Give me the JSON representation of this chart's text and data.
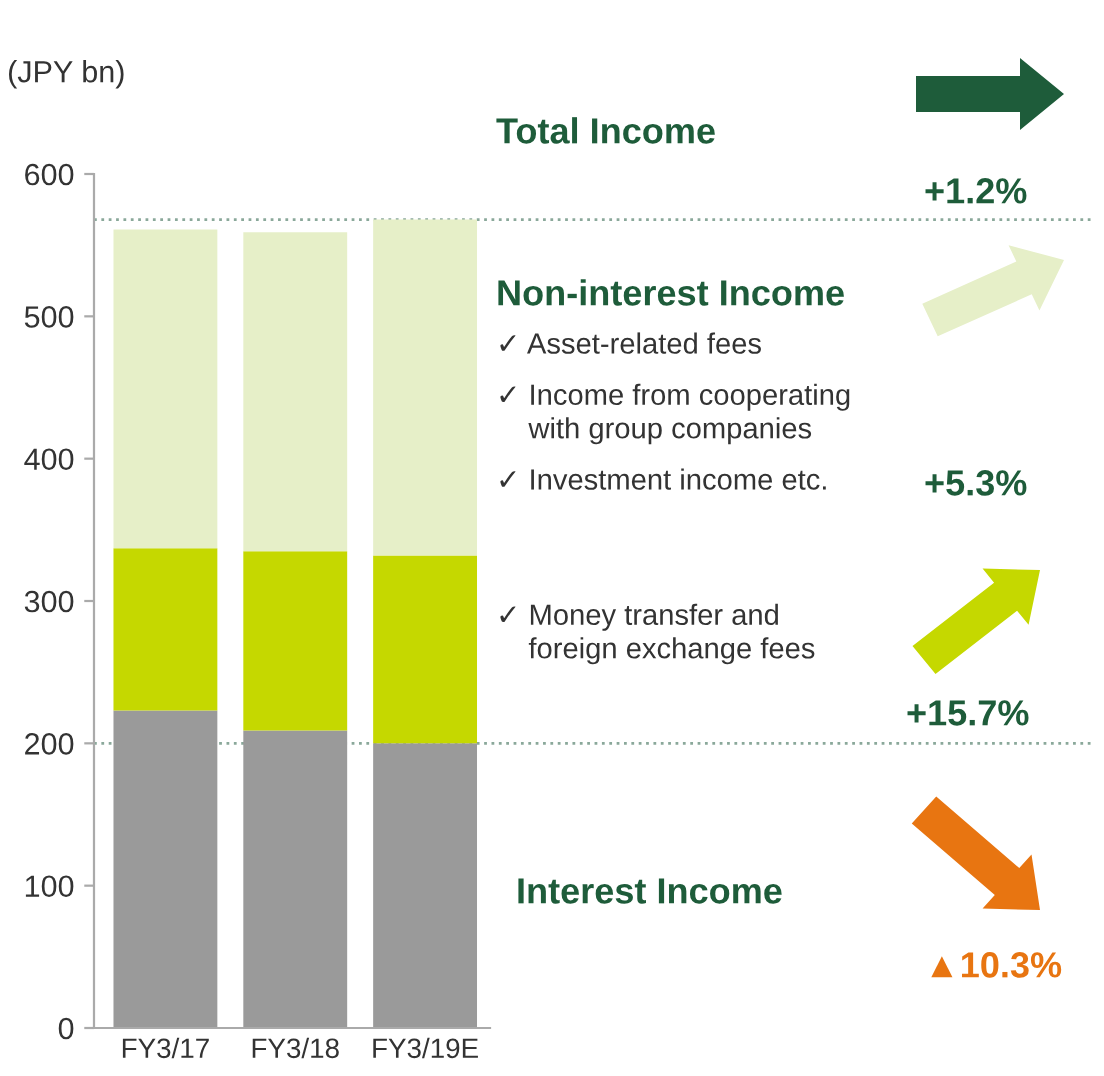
{
  "chart_data": {
    "type": "bar",
    "stacked": true,
    "ylabel": "(JPY bn)",
    "categories": [
      "FY3/17",
      "FY3/18",
      "FY3/19E"
    ],
    "series": [
      {
        "color": "#9a9a9a",
        "values": [
          223,
          209,
          200
        ]
      },
      {
        "color": "#c5d800",
        "values": [
          114,
          126,
          132
        ]
      },
      {
        "color": "#e6efc8",
        "values": [
          224,
          224,
          236
        ]
      }
    ],
    "ylim": [
      0,
      600
    ],
    "yticks": [
      0,
      100,
      200,
      300,
      400,
      500,
      600
    ],
    "grid": false,
    "ref_lines": [
      {
        "axis": "y",
        "value": 568,
        "color": "#8aa89a",
        "line_style": "dotted"
      },
      {
        "axis": "y",
        "value": 200,
        "color": "#8aa89a",
        "line_style": "dotted"
      }
    ],
    "annotations": [
      "Total Income",
      "+1.2%",
      "Non-interest Income",
      "✓ Asset-related fees",
      "✓ Income from cooperating\n    with group companies",
      "✓ Investment income etc.",
      "+5.3%",
      "✓ Money transfer and\n    foreign exchange fees",
      "+15.7%",
      "Interest Income",
      "▲10.3%"
    ]
  }
}
